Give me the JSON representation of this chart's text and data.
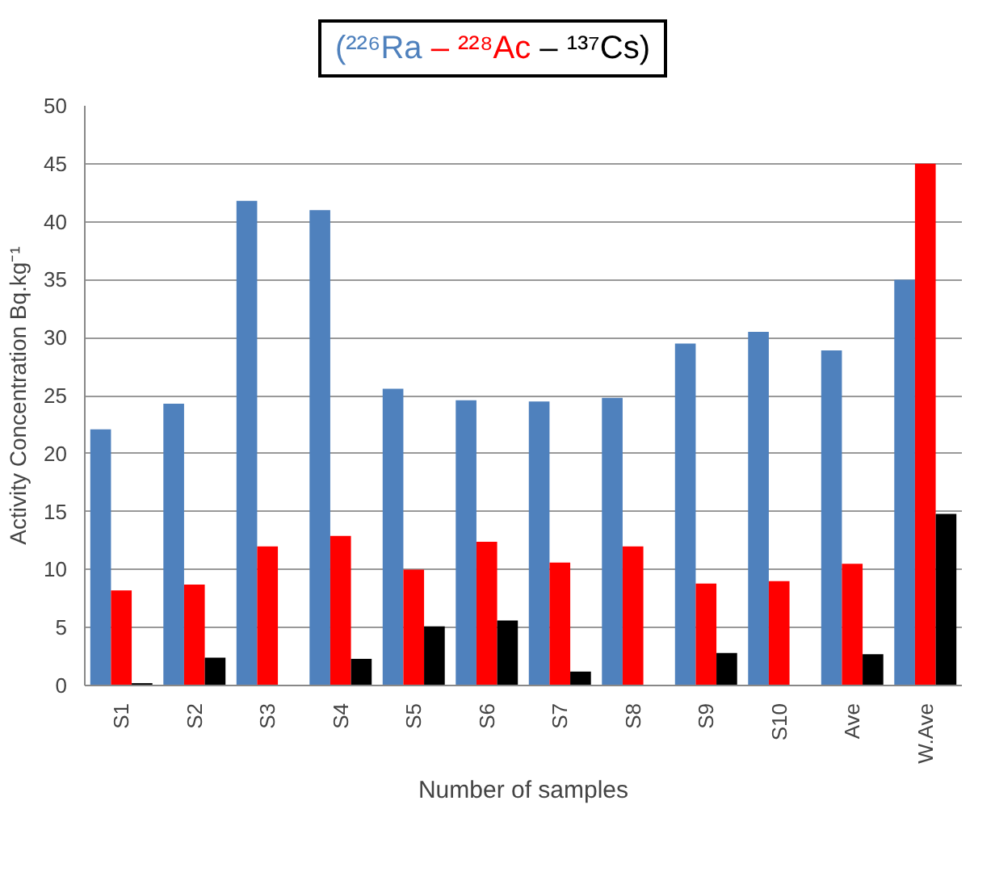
{
  "chart_data": {
    "type": "bar",
    "xlabel": "Number of samples",
    "ylabel": "Activity Concentration Bq.kg⁻¹",
    "categories": [
      "S1",
      "S2",
      "S3",
      "S4",
      "S5",
      "S6",
      "S7",
      "S8",
      "S9",
      "S10",
      "Ave",
      "W.Ave"
    ],
    "series": [
      {
        "name": "(²²⁶Ra",
        "color": "#4f81bd",
        "values": [
          22.1,
          24.3,
          41.8,
          41,
          25.6,
          24.6,
          24.5,
          24.8,
          29.5,
          30.5,
          28.9,
          35
        ]
      },
      {
        "name": "– ²²⁸Ac",
        "color": "#ff0000",
        "values": [
          8.2,
          8.7,
          12,
          12.9,
          10,
          12.4,
          10.6,
          12,
          8.8,
          9,
          10.5,
          45
        ]
      },
      {
        "name": "– ¹³⁷Cs)",
        "color": "#000000",
        "values": [
          0.2,
          2.4,
          null,
          2.3,
          5.1,
          5.6,
          1.2,
          null,
          2.8,
          null,
          2.7,
          14.8
        ]
      }
    ],
    "ylim": [
      0,
      50
    ],
    "yticks": [
      0,
      5,
      10,
      15,
      20,
      25,
      30,
      35,
      40,
      45,
      50
    ],
    "grid": "y",
    "legend": "top"
  }
}
